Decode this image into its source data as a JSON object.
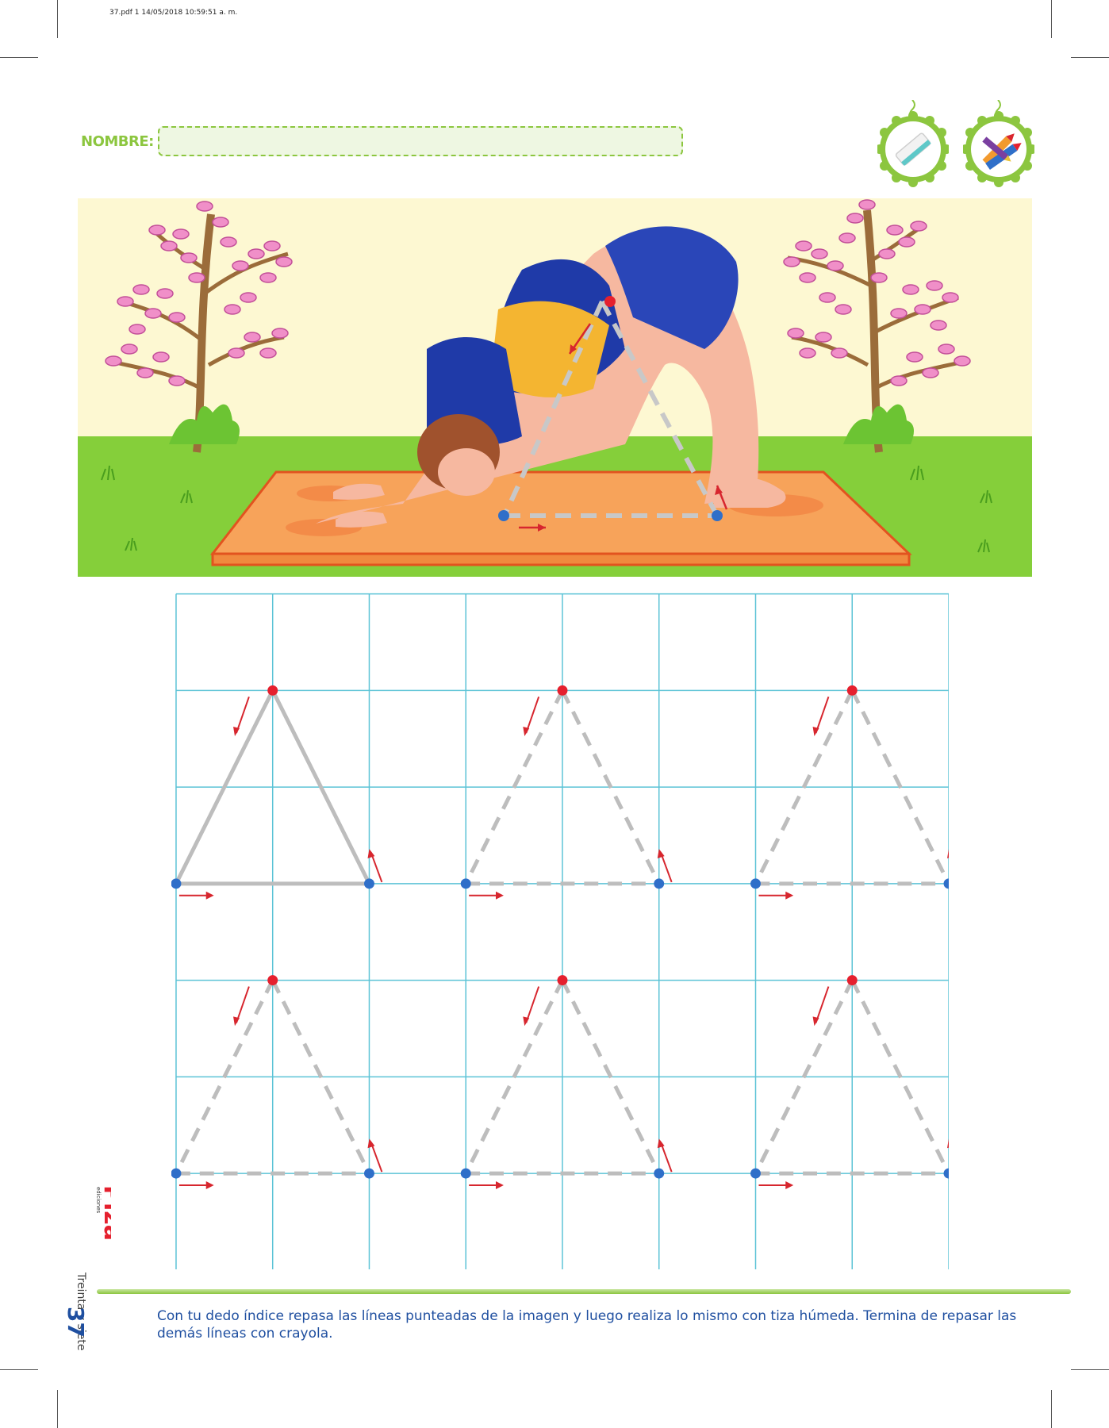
{
  "header": {
    "print_info": "37.pdf  1  14/05/2018  10:59:51 a. m.",
    "name_label": "NOMBRE:"
  },
  "materials": {
    "chalk_icon": "chalk-icon",
    "crayon_icon": "crayon-icon"
  },
  "scene": {
    "illustration": "child-yoga-downward-dog",
    "triangle_guide": "dashed-triangle-guide"
  },
  "tracing": {
    "rows": 2,
    "columns": 3,
    "triangles": 6,
    "solid_example_index": 0
  },
  "colors": {
    "accent_green": "#8cc63f",
    "grid_blue": "#5bc3d6",
    "start_dot": "#e5202e",
    "end_dot": "#2f6fc9",
    "arrow_red": "#d7262e",
    "guide_gray": "#bdbdbd",
    "text_blue": "#1f4fa0"
  },
  "branding": {
    "logo": "Piza",
    "logo_small": "ediciones"
  },
  "footer": {
    "page_number": "37",
    "page_word": "Treinta y siete",
    "instructions": "Con tu dedo índice repasa las líneas punteadas de la imagen y luego realiza lo mismo con tiza húmeda. Termina de repasar las demás líneas con crayola."
  }
}
